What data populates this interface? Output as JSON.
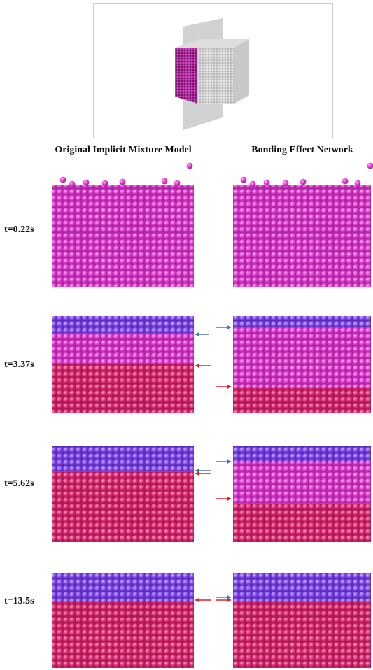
{
  "figure": {
    "columns": [
      "Original Implicit Mixture Model",
      "Bonding Effect Network"
    ],
    "rows": [
      {
        "time": "t=0.22s"
      },
      {
        "time": "t=3.37s"
      },
      {
        "time": "t=5.62s"
      },
      {
        "time": "t=13.5s"
      }
    ]
  }
}
